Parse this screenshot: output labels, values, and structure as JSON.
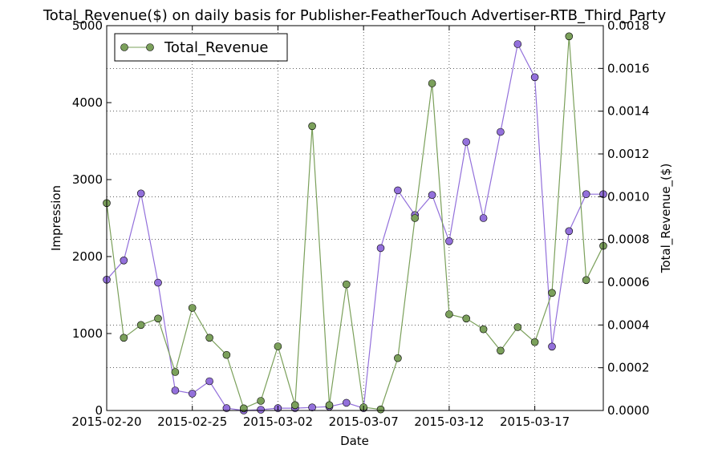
{
  "chart_data": {
    "type": "line",
    "title": "Total_Revenue($) on daily basis for Publisher-FeatherTouch Advertiser-RTB_Third_Party",
    "xlabel": "Date",
    "ylabel_left": "Impression",
    "ylabel_right": "Total_Revenue_($)",
    "x_start": "2015-02-20",
    "x": [
      "2015-02-20",
      "2015-02-21",
      "2015-02-22",
      "2015-02-23",
      "2015-02-24",
      "2015-02-25",
      "2015-02-26",
      "2015-02-27",
      "2015-02-28",
      "2015-03-01",
      "2015-03-02",
      "2015-03-03",
      "2015-03-04",
      "2015-03-05",
      "2015-03-06",
      "2015-03-07",
      "2015-03-08",
      "2015-03-09",
      "2015-03-10",
      "2015-03-11",
      "2015-03-12",
      "2015-03-13",
      "2015-03-14",
      "2015-03-15",
      "2015-03-16",
      "2015-03-17",
      "2015-03-18",
      "2015-03-19",
      "2015-03-20",
      "2015-03-21"
    ],
    "x_tick_labels": [
      "2015-02-20",
      "2015-02-25",
      "2015-03-02",
      "2015-03-07",
      "2015-03-12",
      "2015-03-17"
    ],
    "x_tick_dates": [
      "2015-02-20",
      "2015-02-25",
      "2015-03-02",
      "2015-03-07",
      "2015-03-12",
      "2015-03-17"
    ],
    "xlim": [
      "2015-02-20",
      "2015-03-21"
    ],
    "ylim_left": [
      0,
      5000
    ],
    "yticks_left": [
      "0",
      "1000",
      "2000",
      "3000",
      "4000",
      "5000"
    ],
    "ylim_right": [
      0,
      0.0018
    ],
    "yticks_right": [
      "0.0000",
      "0.0002",
      "0.0004",
      "0.0006",
      "0.0008",
      "0.0010",
      "0.0012",
      "0.0014",
      "0.0016",
      "0.0018"
    ],
    "grid": true,
    "legend_position": "top-left",
    "series": [
      {
        "name": "",
        "axis": "left",
        "color": "#9370DB",
        "values": [
          1700,
          1950,
          2820,
          1660,
          260,
          220,
          380,
          30,
          0,
          10,
          30,
          30,
          40,
          50,
          100,
          30,
          2110,
          2860,
          2540,
          2800,
          2200,
          3490,
          2500,
          3620,
          4760,
          4330,
          830,
          2330,
          2810,
          2810
        ]
      },
      {
        "name": "Total_Revenue",
        "axis": "right",
        "color": "#7BA05B",
        "values": [
          0.00097,
          0.00034,
          0.0004,
          0.00043,
          0.00018,
          0.00048,
          0.00034,
          0.00026,
          1e-05,
          4.5e-05,
          0.0003,
          2.5e-05,
          0.00133,
          2.5e-05,
          0.00059,
          1.5e-05,
          5e-06,
          0.000245,
          0.0009,
          0.00153,
          0.00045,
          0.00043,
          0.00038,
          0.00028,
          0.00039,
          0.00032,
          0.00055,
          0.00175,
          0.00061,
          0.00077
        ]
      }
    ]
  }
}
